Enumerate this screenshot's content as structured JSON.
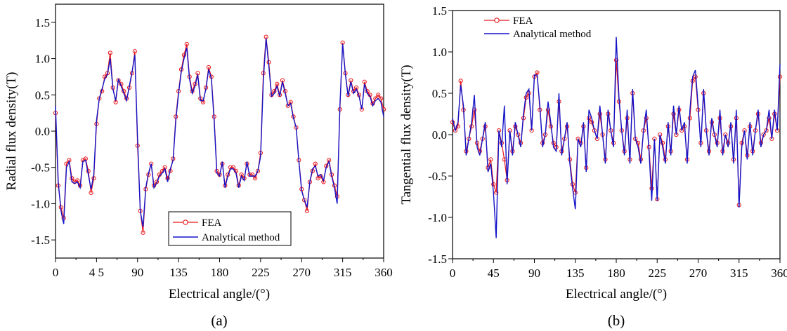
{
  "colors": {
    "fea": "#e8161b",
    "analytical": "#1414c8",
    "axis": "#000000"
  },
  "chart_data": [
    {
      "type": "line",
      "panel_label": "(a)",
      "xlabel": "Electrical angle/(°)",
      "ylabel": "Radial flux density(T)",
      "xlim": [
        0,
        360
      ],
      "ylim": [
        -1.75,
        1.75
      ],
      "xticks": [
        0,
        45,
        90,
        135,
        180,
        225,
        270,
        315,
        360
      ],
      "xtick_labels": [
        "0",
        "4 5",
        "90",
        "135",
        "180",
        "225",
        "270",
        "315",
        "360"
      ],
      "yticks": [
        -1.5,
        -1.0,
        -0.5,
        0.0,
        0.5,
        1.0,
        1.5
      ],
      "ytick_labels": [
        "-1.5",
        "-1.0",
        "-0.5",
        "0.0",
        "0.5",
        "1.0",
        "1.5"
      ],
      "legend": {
        "position": "bottom-right",
        "entries": [
          "FEA",
          "Analytical method"
        ]
      },
      "series": [
        {
          "name": "FEA",
          "marker": "circle",
          "x": [
            0,
            3,
            6,
            9,
            12,
            15,
            18,
            21,
            24,
            27,
            30,
            33,
            36,
            39,
            42,
            45,
            48,
            51,
            54,
            57,
            60,
            63,
            66,
            69,
            72,
            75,
            78,
            81,
            84,
            87,
            90,
            93,
            96,
            99,
            102,
            105,
            108,
            111,
            114,
            117,
            120,
            123,
            126,
            129,
            132,
            135,
            138,
            141,
            144,
            147,
            150,
            153,
            156,
            159,
            162,
            165,
            168,
            171,
            174,
            177,
            180,
            183,
            186,
            189,
            192,
            195,
            198,
            201,
            204,
            207,
            210,
            213,
            216,
            219,
            222,
            225,
            228,
            231,
            234,
            237,
            240,
            243,
            246,
            249,
            252,
            255,
            258,
            261,
            264,
            267,
            270,
            273,
            276,
            279,
            282,
            285,
            288,
            291,
            294,
            297,
            300,
            303,
            306,
            309,
            312,
            315,
            318,
            321,
            324,
            327,
            330,
            333,
            336,
            339,
            342,
            345,
            348,
            351,
            354,
            357,
            360
          ],
          "values": [
            0.25,
            -0.75,
            -1.05,
            -1.2,
            -0.45,
            -0.4,
            -0.65,
            -0.7,
            -0.68,
            -0.75,
            -0.4,
            -0.38,
            -0.55,
            -0.85,
            -0.65,
            0.1,
            0.45,
            0.55,
            0.75,
            0.8,
            1.08,
            0.6,
            0.4,
            0.7,
            0.65,
            0.55,
            0.45,
            0.6,
            0.8,
            1.1,
            -0.2,
            -1.1,
            -1.4,
            -0.8,
            -0.6,
            -0.45,
            -0.75,
            -0.7,
            -0.6,
            -0.55,
            -0.5,
            -0.65,
            -0.55,
            -0.38,
            0.2,
            0.55,
            0.85,
            1.05,
            1.2,
            0.75,
            0.55,
            0.65,
            0.8,
            0.45,
            0.4,
            0.6,
            0.88,
            0.75,
            0.2,
            -0.55,
            -0.6,
            -0.45,
            -0.75,
            -0.6,
            -0.5,
            -0.5,
            -0.55,
            -0.75,
            -0.6,
            -0.65,
            -0.45,
            -0.6,
            -0.6,
            -0.65,
            -0.55,
            -0.3,
            0.8,
            1.3,
            0.95,
            0.5,
            0.55,
            0.65,
            0.5,
            0.7,
            0.55,
            0.35,
            0.4,
            0.2,
            0.05,
            -0.4,
            -0.8,
            -0.95,
            -1.1,
            -0.7,
            -0.55,
            -0.45,
            -0.65,
            -0.62,
            -0.7,
            -0.48,
            -0.4,
            -0.6,
            -0.75,
            -0.9,
            0.3,
            1.22,
            0.8,
            0.5,
            0.7,
            0.55,
            0.6,
            0.5,
            0.3,
            0.68,
            0.55,
            0.5,
            0.38,
            0.45,
            0.5,
            0.45,
            0.3
          ]
        },
        {
          "name": "Analytical method",
          "x": [
            0,
            3,
            6,
            9,
            12,
            15,
            18,
            21,
            24,
            27,
            30,
            33,
            36,
            39,
            42,
            45,
            48,
            51,
            54,
            57,
            60,
            63,
            66,
            69,
            72,
            75,
            78,
            81,
            84,
            87,
            90,
            93,
            96,
            99,
            102,
            105,
            108,
            111,
            114,
            117,
            120,
            123,
            126,
            129,
            132,
            135,
            138,
            141,
            144,
            147,
            150,
            153,
            156,
            159,
            162,
            165,
            168,
            171,
            174,
            177,
            180,
            183,
            186,
            189,
            192,
            195,
            198,
            201,
            204,
            207,
            210,
            213,
            216,
            219,
            222,
            225,
            228,
            231,
            234,
            237,
            240,
            243,
            246,
            249,
            252,
            255,
            258,
            261,
            264,
            267,
            270,
            273,
            276,
            279,
            282,
            285,
            288,
            291,
            294,
            297,
            300,
            303,
            306,
            309,
            312,
            315,
            318,
            321,
            324,
            327,
            330,
            333,
            336,
            339,
            342,
            345,
            348,
            351,
            354,
            357,
            360
          ],
          "values": [
            0.35,
            -0.7,
            -1.1,
            -1.28,
            -0.5,
            -0.42,
            -0.7,
            -0.72,
            -0.7,
            -0.78,
            -0.42,
            -0.4,
            -0.6,
            -0.8,
            -0.6,
            0.15,
            0.45,
            0.58,
            0.72,
            0.78,
            1.0,
            0.58,
            0.42,
            0.72,
            0.62,
            0.52,
            0.42,
            0.62,
            0.82,
            1.05,
            -0.1,
            -1.1,
            -1.32,
            -0.78,
            -0.58,
            -0.45,
            -0.78,
            -0.72,
            -0.62,
            -0.58,
            -0.52,
            -0.7,
            -0.52,
            -0.4,
            0.15,
            0.52,
            0.82,
            1.0,
            1.15,
            0.72,
            0.52,
            0.62,
            0.78,
            0.42,
            0.42,
            0.58,
            0.85,
            0.72,
            0.15,
            -0.58,
            -0.62,
            -0.42,
            -0.78,
            -0.62,
            -0.52,
            -0.52,
            -0.58,
            -0.78,
            -0.62,
            -0.68,
            -0.42,
            -0.62,
            -0.62,
            -0.62,
            -0.55,
            -0.35,
            0.7,
            1.28,
            0.9,
            0.48,
            0.52,
            0.62,
            0.48,
            0.68,
            0.52,
            0.35,
            0.38,
            0.18,
            0.05,
            -0.42,
            -0.82,
            -0.95,
            -1.05,
            -0.7,
            -0.52,
            -0.48,
            -0.62,
            -0.6,
            -0.68,
            -0.5,
            -0.42,
            -0.62,
            -0.78,
            -1.0,
            0.35,
            1.2,
            0.78,
            0.48,
            0.68,
            0.52,
            0.58,
            0.48,
            0.3,
            0.65,
            0.52,
            0.48,
            0.35,
            0.42,
            0.45,
            0.4,
            0.2
          ]
        }
      ]
    },
    {
      "type": "line",
      "panel_label": "(b)",
      "xlabel": "Electrical angle/(°)",
      "ylabel": "Tangential flux density(T)",
      "xlim": [
        0,
        360
      ],
      "ylim": [
        -1.5,
        1.5
      ],
      "xticks": [
        0,
        45,
        90,
        135,
        180,
        225,
        270,
        315,
        360
      ],
      "xtick_labels": [
        "0",
        "45",
        "90",
        "135",
        "180",
        "225",
        "270",
        "315",
        "360"
      ],
      "yticks": [
        -1.5,
        -1.0,
        -0.5,
        0.0,
        0.5,
        1.0,
        1.5
      ],
      "ytick_labels": [
        "-1.5",
        "-1.0",
        "-0.5",
        "0.0",
        "0.5",
        "1.0",
        "1.5"
      ],
      "legend": {
        "position": "top-left",
        "entries": [
          "FEA",
          "Analytical method"
        ]
      },
      "series": [
        {
          "name": "FEA",
          "marker": "circle",
          "x": [
            0,
            3,
            6,
            9,
            12,
            15,
            18,
            21,
            24,
            27,
            30,
            33,
            36,
            39,
            42,
            45,
            48,
            51,
            54,
            57,
            60,
            63,
            66,
            69,
            72,
            75,
            78,
            81,
            84,
            87,
            90,
            93,
            96,
            99,
            102,
            105,
            108,
            111,
            114,
            117,
            120,
            123,
            126,
            129,
            132,
            135,
            138,
            141,
            144,
            147,
            150,
            153,
            156,
            159,
            162,
            165,
            168,
            171,
            174,
            177,
            180,
            183,
            186,
            189,
            192,
            195,
            198,
            201,
            204,
            207,
            210,
            213,
            216,
            219,
            222,
            225,
            228,
            231,
            234,
            237,
            240,
            243,
            246,
            249,
            252,
            255,
            258,
            261,
            264,
            267,
            270,
            273,
            276,
            279,
            282,
            285,
            288,
            291,
            294,
            297,
            300,
            303,
            306,
            309,
            312,
            315,
            318,
            321,
            324,
            327,
            330,
            333,
            336,
            339,
            342,
            345,
            348,
            351,
            354,
            357,
            360
          ],
          "values": [
            0.15,
            0.05,
            0.1,
            0.65,
            0.3,
            -0.2,
            -0.05,
            0.1,
            0.3,
            -0.1,
            -0.2,
            -0.05,
            0.1,
            -0.4,
            -0.3,
            -0.6,
            -0.7,
            0.05,
            -0.1,
            -0.3,
            -0.55,
            0.05,
            -0.2,
            0.1,
            0.0,
            -0.1,
            0.2,
            0.45,
            0.5,
            0.05,
            0.7,
            0.75,
            0.3,
            -0.1,
            0.0,
            0.3,
            0.1,
            -0.1,
            -0.15,
            0.4,
            -0.2,
            -0.05,
            0.1,
            -0.3,
            -0.6,
            -0.7,
            -0.05,
            -0.1,
            0.1,
            -0.4,
            0.2,
            0.15,
            0.05,
            -0.05,
            0.25,
            0.0,
            -0.3,
            0.25,
            0.05,
            -0.1,
            0.9,
            0.4,
            0.05,
            -0.2,
            0.2,
            -0.3,
            0.5,
            -0.05,
            -0.1,
            -0.3,
            0.05,
            0.2,
            -0.15,
            -0.65,
            -0.05,
            -0.78,
            0.0,
            -0.1,
            -0.3,
            0.1,
            -0.2,
            0.25,
            0.0,
            0.3,
            0.05,
            0.1,
            -0.3,
            0.2,
            0.65,
            0.7,
            0.3,
            -0.1,
            0.5,
            0.05,
            -0.2,
            0.15,
            0.0,
            -0.1,
            0.2,
            -0.2,
            0.0,
            -0.1,
            0.1,
            -0.3,
            0.2,
            -0.85,
            -0.1,
            0.05,
            -0.25,
            0.1,
            -0.2,
            0.05,
            0.25,
            -0.1,
            0.0,
            0.05,
            0.2,
            -0.05,
            0.25,
            0.05,
            0.7
          ]
        },
        {
          "name": "Analytical method",
          "x": [
            0,
            3,
            6,
            9,
            12,
            15,
            18,
            21,
            24,
            27,
            30,
            33,
            36,
            39,
            42,
            45,
            48,
            51,
            54,
            57,
            60,
            63,
            66,
            69,
            72,
            75,
            78,
            81,
            84,
            87,
            90,
            93,
            96,
            99,
            102,
            105,
            108,
            111,
            114,
            117,
            120,
            123,
            126,
            129,
            132,
            135,
            138,
            141,
            144,
            147,
            150,
            153,
            156,
            159,
            162,
            165,
            168,
            171,
            174,
            177,
            180,
            183,
            186,
            189,
            192,
            195,
            198,
            201,
            204,
            207,
            210,
            213,
            216,
            219,
            222,
            225,
            228,
            231,
            234,
            237,
            240,
            243,
            246,
            249,
            252,
            255,
            258,
            261,
            264,
            267,
            270,
            273,
            276,
            279,
            282,
            285,
            288,
            291,
            294,
            297,
            300,
            303,
            306,
            309,
            312,
            315,
            318,
            321,
            324,
            327,
            330,
            333,
            336,
            339,
            342,
            345,
            348,
            351,
            354,
            357,
            360
          ],
          "values": [
            0.2,
            0.05,
            0.15,
            0.6,
            0.35,
            -0.25,
            -0.05,
            0.15,
            0.48,
            -0.15,
            -0.25,
            -0.05,
            0.15,
            -0.45,
            -0.35,
            -0.7,
            -1.25,
            0.05,
            -0.15,
            0.35,
            -0.6,
            0.05,
            -0.25,
            0.15,
            0.0,
            -0.15,
            0.25,
            0.5,
            0.55,
            0.05,
            0.72,
            0.72,
            0.35,
            -0.15,
            0.0,
            0.4,
            0.15,
            -0.15,
            -0.2,
            0.5,
            -0.25,
            -0.05,
            0.15,
            -0.35,
            -0.65,
            -0.9,
            -0.05,
            -0.15,
            0.15,
            -0.45,
            0.3,
            0.2,
            0.05,
            -0.05,
            0.35,
            0.0,
            -0.35,
            0.3,
            0.05,
            -0.15,
            1.18,
            0.45,
            0.05,
            -0.25,
            0.3,
            -0.35,
            0.55,
            -0.05,
            -0.15,
            -0.35,
            0.05,
            0.3,
            -0.2,
            -0.8,
            -0.05,
            -0.8,
            0.0,
            -0.15,
            -0.35,
            0.15,
            -0.25,
            0.35,
            0.0,
            0.35,
            0.05,
            0.15,
            -0.35,
            0.3,
            0.7,
            0.78,
            0.35,
            -0.15,
            0.55,
            0.05,
            -0.25,
            0.2,
            0.0,
            -0.15,
            0.3,
            -0.25,
            0.0,
            -0.15,
            0.15,
            -0.35,
            0.3,
            -0.88,
            -0.15,
            0.05,
            -0.3,
            0.15,
            -0.25,
            0.05,
            0.3,
            -0.15,
            0.0,
            0.05,
            0.3,
            -0.05,
            0.3,
            0.05,
            0.85
          ]
        }
      ]
    }
  ]
}
